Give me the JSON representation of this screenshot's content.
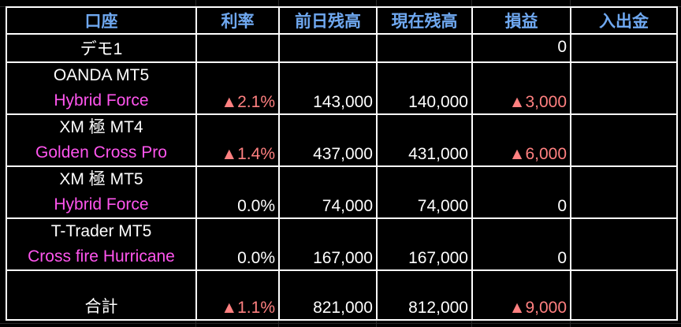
{
  "colors": {
    "header": "#6fa8f0",
    "strategy": "#ff55ee",
    "negative": "#ff8080",
    "text": "#ffffff",
    "background": "#000000"
  },
  "headers": [
    "口座",
    "利率",
    "前日残高",
    "現在残高",
    "損益",
    "入出金"
  ],
  "demo": {
    "account": "デモ1",
    "pnl": "0"
  },
  "rows": [
    {
      "account": "OANDA  MT5",
      "strategy": "Hybrid Force",
      "rate": "▲2.1%",
      "prev": "143,000",
      "current": "140,000",
      "pnl": "▲3,000",
      "rate_negative": true,
      "pnl_negative": true
    },
    {
      "account": "XM 極  MT4",
      "strategy": "Golden Cross Pro",
      "rate": "▲1.4%",
      "prev": "437,000",
      "current": "431,000",
      "pnl": "▲6,000",
      "rate_negative": true,
      "pnl_negative": true
    },
    {
      "account": "XM 極  MT5",
      "strategy": "Hybrid Force",
      "rate": "0.0%",
      "prev": "74,000",
      "current": "74,000",
      "pnl": "0",
      "rate_negative": false,
      "pnl_negative": false
    },
    {
      "account": "T-Trader  MT5",
      "strategy": "Cross fire Hurricane",
      "rate": "0.0%",
      "prev": "167,000",
      "current": "167,000",
      "pnl": "0",
      "rate_negative": false,
      "pnl_negative": false
    }
  ],
  "total": {
    "label": "合計",
    "rate": "▲1.1%",
    "prev": "821,000",
    "current": "812,000",
    "pnl": "▲9,000"
  }
}
